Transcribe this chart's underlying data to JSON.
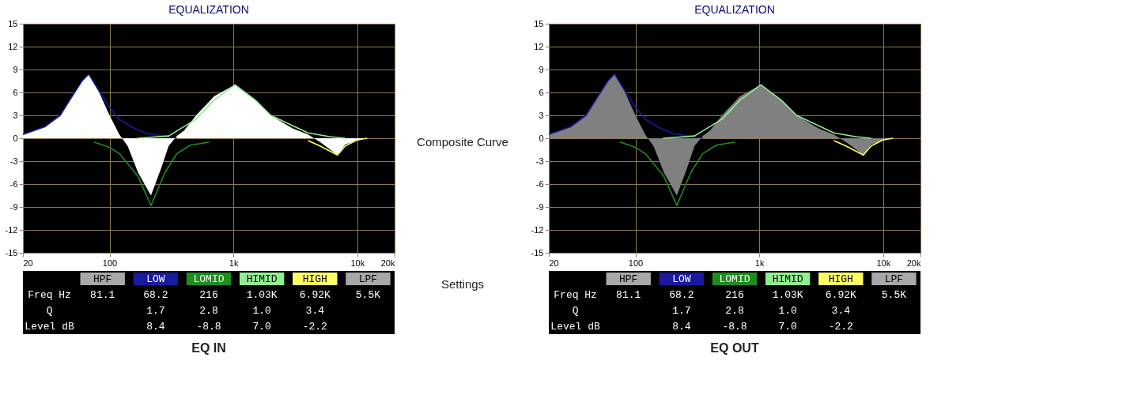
{
  "chart_data": [
    {
      "type": "area",
      "title": "EQUALIZATION",
      "xlabel": "EQ IN",
      "log": "x",
      "grid": true,
      "xlim": [
        20,
        20000
      ],
      "xticks": [
        {
          "value": 20,
          "label": "20"
        },
        {
          "value": 100,
          "label": "100"
        },
        {
          "value": 1000,
          "label": "1k"
        },
        {
          "value": 10000,
          "label": "10k"
        },
        {
          "value": 20000,
          "label": "20k"
        }
      ],
      "ylim": [
        -15,
        15
      ],
      "yticks": [
        -15,
        -12,
        -9,
        -6,
        -3,
        0,
        3,
        6,
        9,
        12,
        15
      ],
      "series": [
        {
          "type": "area",
          "color": "#ffffff",
          "x": [
            20,
            30,
            40,
            50,
            60,
            68,
            80,
            100,
            120,
            140,
            170,
            216,
            260,
            300,
            350,
            400,
            500,
            700,
            1030,
            1500,
            2000,
            3000,
            4000,
            5000,
            6920,
            8000,
            10000,
            12000,
            20000
          ],
          "values": [
            0.5,
            1.5,
            3,
            5.5,
            7.5,
            8.4,
            6.5,
            3,
            0.5,
            -1,
            -4.5,
            -7.5,
            -4,
            -1,
            0.3,
            1,
            3,
            5.5,
            7,
            5,
            3,
            1.3,
            0.5,
            -0.5,
            -2.2,
            -0.8,
            -0.3,
            0,
            0
          ]
        },
        {
          "type": "line",
          "name": "LOW",
          "color": "#1a1aa0",
          "x": [
            20,
            30,
            40,
            50,
            60,
            68,
            80,
            100,
            120,
            150,
            200,
            300,
            350
          ],
          "values": [
            0.5,
            1.5,
            3,
            5.5,
            7.5,
            8.4,
            6.5,
            4,
            2.5,
            1.5,
            0.6,
            0.2,
            0
          ]
        },
        {
          "type": "line",
          "name": "LOMID",
          "color": "#1e8c1e",
          "x": [
            75,
            100,
            120,
            170,
            216,
            280,
            350,
            450,
            640
          ],
          "values": [
            -0.5,
            -1.2,
            -2,
            -5,
            -8.8,
            -4.5,
            -2,
            -0.9,
            -0.5
          ]
        },
        {
          "type": "line",
          "name": "HIMID",
          "color": "#90ee90",
          "x": [
            167,
            300,
            500,
            700,
            1030,
            1500,
            2000,
            4000,
            6000,
            8000
          ],
          "values": [
            0,
            0.3,
            2.5,
            5,
            7,
            5,
            3,
            0.7,
            0.2,
            0
          ]
        },
        {
          "type": "line",
          "name": "HIGH",
          "color": "#ffff66",
          "x": [
            4000,
            5000,
            6920,
            8000,
            10000,
            12000
          ],
          "values": [
            -0.3,
            -1,
            -2.2,
            -1,
            -0.2,
            0
          ]
        }
      ],
      "annotations": [
        "HPF",
        "LPF",
        "Freq  Hz",
        "81.1",
        "68.2",
        "216",
        "1.03K",
        "6.92K",
        "5.5K",
        "Q",
        "1.7",
        "2.8",
        "1.0",
        "3.4",
        "Level dB",
        "8.4",
        "-8.8",
        "7.0",
        "-2.2"
      ]
    },
    {
      "type": "other",
      "annotations": [
        "Composite Curve",
        "Settings"
      ]
    },
    {
      "type": "area",
      "title": "EQUALIZATION",
      "xlabel": "EQ OUT",
      "log": "x",
      "grid": true,
      "xlim": [
        20,
        20000
      ],
      "xticks": [
        {
          "value": 20,
          "label": "20"
        },
        {
          "value": 100,
          "label": "100"
        },
        {
          "value": 1000,
          "label": "1k"
        },
        {
          "value": 10000,
          "label": "10k"
        },
        {
          "value": 20000,
          "label": "20k"
        }
      ],
      "ylim": [
        -15,
        15
      ],
      "yticks": [
        -15,
        -12,
        -9,
        -6,
        -3,
        0,
        3,
        6,
        9,
        12,
        15
      ],
      "series": [
        {
          "type": "area",
          "color": "#808080",
          "x": [
            20,
            30,
            40,
            50,
            60,
            68,
            80,
            100,
            120,
            140,
            170,
            216,
            260,
            300,
            350,
            400,
            500,
            700,
            1030,
            1500,
            2000,
            3000,
            4000,
            5000,
            6920,
            8000,
            10000,
            12000,
            20000
          ],
          "values": [
            0.5,
            1.5,
            3,
            5.5,
            7.5,
            8.4,
            6.5,
            3,
            0.5,
            -1,
            -4.5,
            -7.5,
            -4,
            -1,
            0.3,
            1,
            3,
            5.5,
            7,
            5,
            3,
            1.3,
            0.5,
            -0.5,
            -2.2,
            -0.8,
            -0.3,
            0,
            0
          ]
        },
        {
          "type": "line",
          "name": "LOW",
          "color": "#1a1aa0",
          "x": [
            20,
            30,
            40,
            50,
            60,
            68,
            80,
            100,
            120,
            150,
            200,
            300,
            350
          ],
          "values": [
            0.5,
            1.5,
            3,
            5.5,
            7.5,
            8.4,
            6.5,
            4,
            2.5,
            1.5,
            0.6,
            0.2,
            0
          ]
        },
        {
          "type": "line",
          "name": "LOMID",
          "color": "#1e8c1e",
          "x": [
            75,
            100,
            120,
            170,
            216,
            280,
            350,
            450,
            640
          ],
          "values": [
            -0.5,
            -1.2,
            -2,
            -5,
            -8.8,
            -4.5,
            -2,
            -0.9,
            -0.5
          ]
        },
        {
          "type": "line",
          "name": "HIMID",
          "color": "#90ee90",
          "x": [
            167,
            300,
            500,
            700,
            1030,
            1500,
            2000,
            4000,
            6000,
            8000
          ],
          "values": [
            0,
            0.3,
            2.5,
            5,
            7,
            5,
            3,
            0.7,
            0.2,
            0
          ]
        },
        {
          "type": "line",
          "name": "HIGH",
          "color": "#ffff66",
          "x": [
            4000,
            5000,
            6920,
            8000,
            10000,
            12000
          ],
          "values": [
            -0.3,
            -1,
            -2.2,
            -1,
            -0.2,
            0
          ]
        }
      ],
      "annotations": [
        "HPF",
        "LPF",
        "Freq  Hz",
        "81.1",
        "68.2",
        "216",
        "1.03K",
        "6.92K",
        "5.5K",
        "Q",
        "1.7",
        "2.8",
        "1.0",
        "3.4",
        "Level dB",
        "8.4",
        "-8.8",
        "7.0",
        "-2.2"
      ]
    }
  ]
}
